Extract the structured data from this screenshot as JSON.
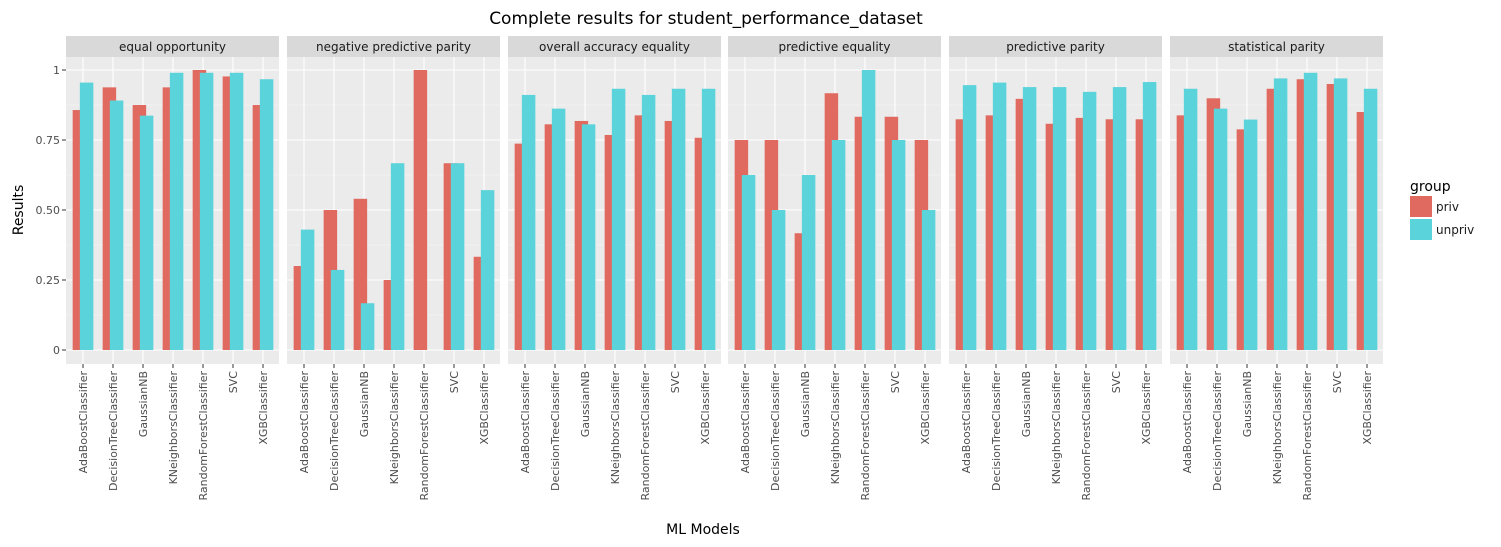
{
  "chart_data": {
    "type": "bar",
    "title": "Complete results for student_performance_dataset",
    "xlabel": "ML Models",
    "ylabel": "Results",
    "ylim": [
      0,
      1.0
    ],
    "yticks": [
      0,
      0.25,
      0.5,
      0.75,
      1
    ],
    "ytick_labels": [
      "0",
      "0.25",
      "0.50",
      "0.75",
      "1"
    ],
    "grid": true,
    "legend": {
      "title": "group",
      "placement": "right",
      "entries": [
        {
          "name": "priv",
          "color": "#E06A5F"
        },
        {
          "name": "unpriv",
          "color": "#5BD3DB"
        }
      ]
    },
    "categories": [
      "AdaBoostClassifier",
      "DecisionTreeClassifier",
      "GaussianNB",
      "KNeighborsClassifier",
      "RandomForestClassifier",
      "SVC",
      "XGBClassifier"
    ],
    "facets": [
      {
        "label": "equal opportunity",
        "series": [
          {
            "name": "priv",
            "values": [
              0.857,
              0.938,
              0.875,
              0.938,
              1.0,
              0.977,
              0.875
            ]
          },
          {
            "name": "unpriv",
            "values": [
              0.955,
              0.891,
              0.837,
              0.99,
              0.99,
              0.99,
              0.967
            ]
          }
        ]
      },
      {
        "label": "negative predictive parity",
        "series": [
          {
            "name": "priv",
            "values": [
              0.3,
              0.5,
              0.54,
              0.25,
              1.0,
              0.667,
              0.333
            ]
          },
          {
            "name": "unpriv",
            "values": [
              0.43,
              0.286,
              0.167,
              0.667,
              0.0,
              0.667,
              0.571
            ]
          }
        ]
      },
      {
        "label": "overall accuracy equality",
        "series": [
          {
            "name": "priv",
            "values": [
              0.737,
              0.806,
              0.818,
              0.768,
              0.838,
              0.818,
              0.758
            ]
          },
          {
            "name": "unpriv",
            "values": [
              0.911,
              0.862,
              0.806,
              0.933,
              0.911,
              0.933,
              0.933
            ]
          }
        ]
      },
      {
        "label": "predictive equality",
        "series": [
          {
            "name": "priv",
            "values": [
              0.75,
              0.75,
              0.417,
              0.917,
              0.833,
              0.833,
              0.75
            ]
          },
          {
            "name": "unpriv",
            "values": [
              0.625,
              0.5,
              0.625,
              0.75,
              1.0,
              0.75,
              0.5
            ]
          }
        ]
      },
      {
        "label": "predictive parity",
        "series": [
          {
            "name": "priv",
            "values": [
              0.824,
              0.838,
              0.897,
              0.808,
              0.829,
              0.824,
              0.824
            ]
          },
          {
            "name": "unpriv",
            "values": [
              0.946,
              0.955,
              0.939,
              0.939,
              0.922,
              0.939,
              0.957
            ]
          }
        ]
      },
      {
        "label": "statistical parity",
        "series": [
          {
            "name": "priv",
            "values": [
              0.838,
              0.899,
              0.788,
              0.933,
              0.967,
              0.95,
              0.85
            ]
          },
          {
            "name": "unpriv",
            "values": [
              0.933,
              0.862,
              0.823,
              0.97,
              0.99,
              0.97,
              0.933
            ]
          }
        ]
      }
    ]
  }
}
